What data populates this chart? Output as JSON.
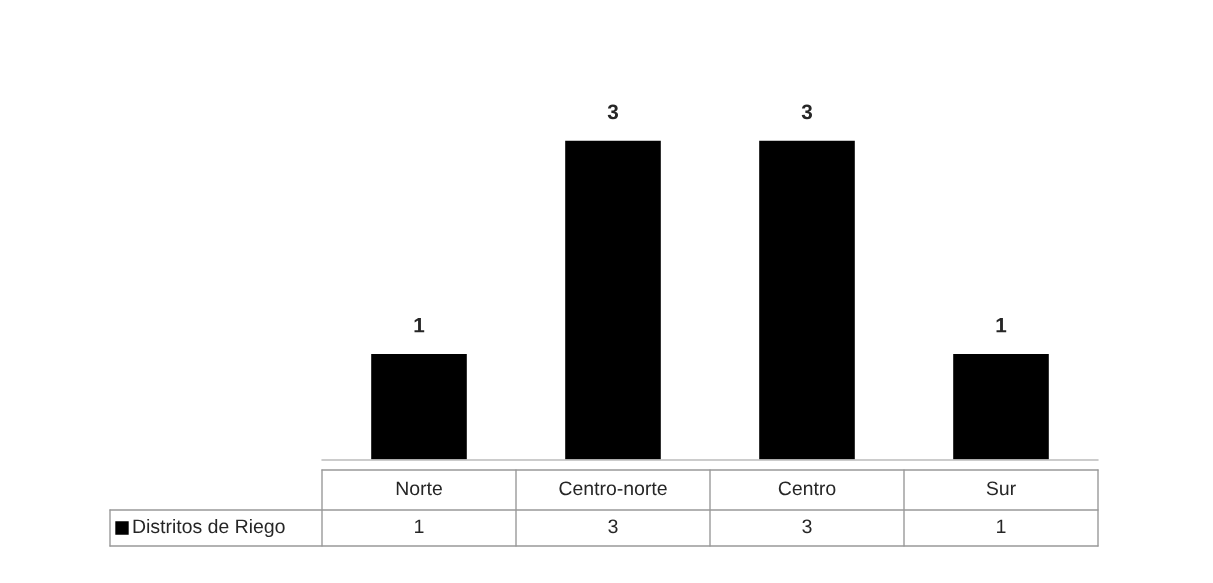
{
  "chart_data": {
    "type": "bar",
    "categories": [
      "Norte",
      "Centro-norte",
      "Centro",
      "Sur"
    ],
    "series": [
      {
        "name": "Distritos de Riego",
        "color": "#000000",
        "values": [
          1,
          3,
          3,
          1
        ],
        "value_labels": [
          "1",
          "3",
          "3",
          "1"
        ]
      }
    ],
    "annotations": [
      "1",
      "3",
      "3",
      "1"
    ]
  }
}
